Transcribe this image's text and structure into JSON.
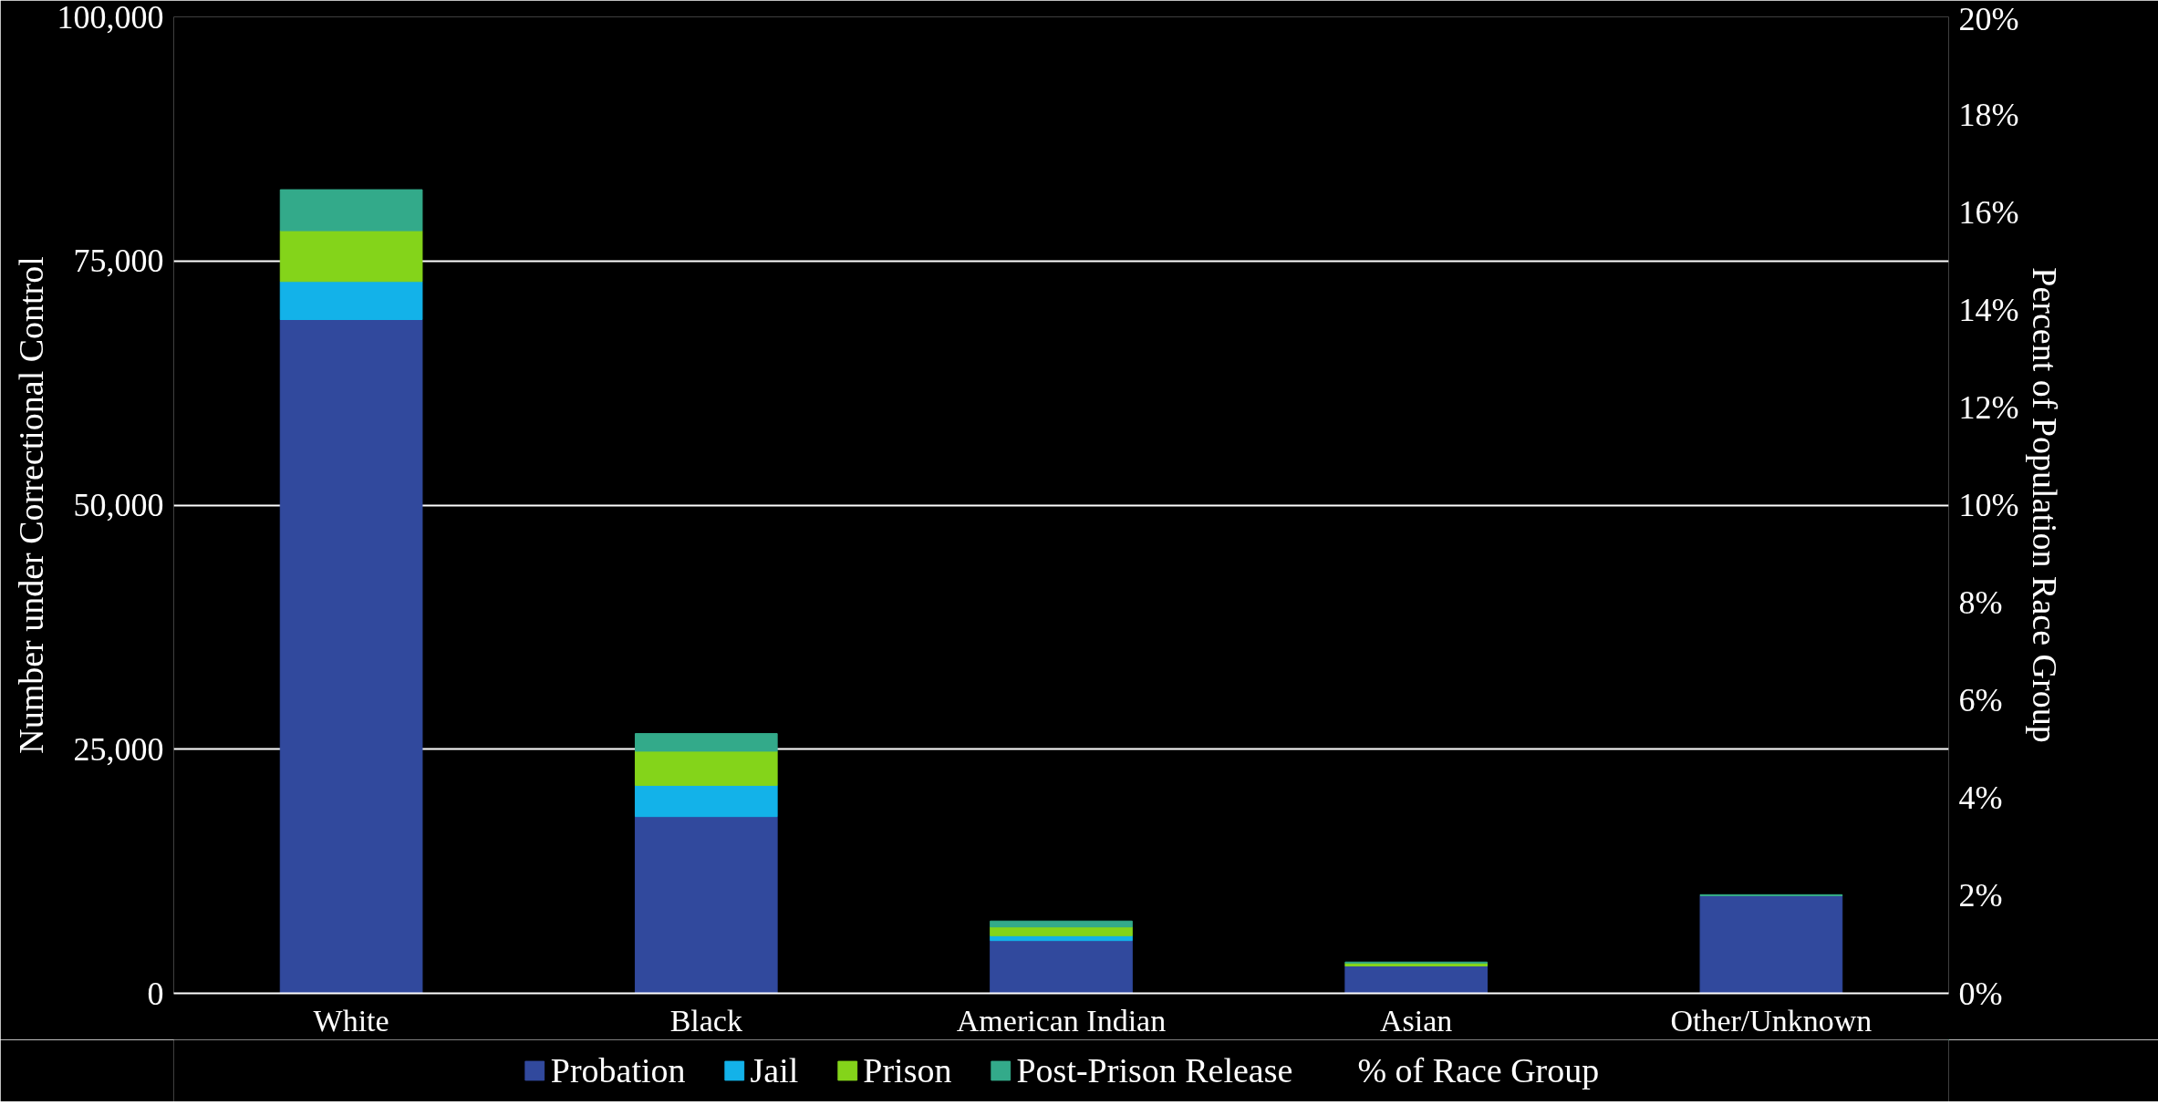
{
  "chart_data": {
    "type": "bar",
    "stacked": true,
    "ylabel": "Number under Correctional Control",
    "y2label": "Percent of Population Race Group",
    "categories": [
      "White",
      "Black",
      "American Indian",
      "Asian",
      "Other/Unknown"
    ],
    "series": [
      {
        "name": "Probation",
        "color": "#31499d",
        "values": [
          69000,
          18100,
          5400,
          2800,
          10000
        ]
      },
      {
        "name": "Jail",
        "color": "#13b2e9",
        "values": [
          3900,
          3200,
          500,
          null,
          0
        ]
      },
      {
        "name": "Prison",
        "color": "#84d41a",
        "values": [
          5200,
          3500,
          900,
          300,
          0
        ]
      },
      {
        "name": "Post-Prison Release",
        "color": "#33aa8a",
        "values": [
          4200,
          1800,
          600,
          100,
          100
        ]
      },
      {
        "name": "% of Race Group",
        "type": "line",
        "values": [
          null,
          null,
          null,
          null,
          null
        ]
      }
    ],
    "ylim": [
      0,
      100000
    ],
    "yticks": [
      {
        "value": 0,
        "label": "0"
      },
      {
        "value": 25000,
        "label": "25,000"
      },
      {
        "value": 50000,
        "label": "50,000"
      },
      {
        "value": 75000,
        "label": "75,000"
      },
      {
        "value": 100000,
        "label": "100,000"
      }
    ],
    "y2lim": [
      0,
      20
    ],
    "y2ticks": [
      {
        "value": 0,
        "label": "0%"
      },
      {
        "value": 2,
        "label": "2%"
      },
      {
        "value": 4,
        "label": "4%"
      },
      {
        "value": 6,
        "label": "6%"
      },
      {
        "value": 8,
        "label": "8%"
      },
      {
        "value": 10,
        "label": "10%"
      },
      {
        "value": 12,
        "label": "12%"
      },
      {
        "value": 14,
        "label": "14%"
      },
      {
        "value": 16,
        "label": "16%"
      },
      {
        "value": 18,
        "label": "18%"
      },
      {
        "value": 20,
        "label": "20%"
      }
    ],
    "grid": "y",
    "legend": "bottom"
  }
}
